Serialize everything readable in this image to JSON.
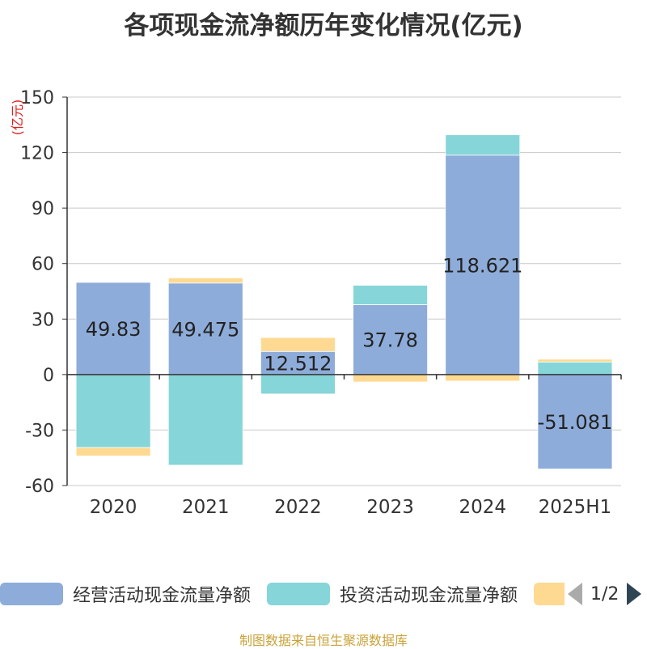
{
  "chart_data": {
    "type": "bar",
    "stacked": true,
    "title": "各项现金流净额历年变化情况(亿元)",
    "ylabel": "(亿元)",
    "categories": [
      "2020",
      "2021",
      "2022",
      "2023",
      "2024",
      "2025H1"
    ],
    "ylim": [
      -60,
      150
    ],
    "yticks": [
      150,
      120,
      90,
      60,
      30,
      0,
      -30,
      -60
    ],
    "grid": true,
    "legend_position": "bottom",
    "series": [
      {
        "name": "经营活动现金流量净额",
        "color": "#8eacd9",
        "values": [
          49.83,
          49.475,
          12.512,
          37.78,
          118.621,
          -51.081
        ],
        "data_labels": [
          "49.83",
          "49.475",
          "12.512",
          "37.78",
          "118.621",
          "-51.081"
        ]
      },
      {
        "name": "投资活动现金流量净额",
        "color": "#86d5d8",
        "values": [
          -39.5,
          -49.0,
          -10.5,
          10.5,
          11.0,
          6.8
        ]
      },
      {
        "name": "",
        "color": "#fed991",
        "values": [
          -4.5,
          2.8,
          7.5,
          -4.0,
          -3.5,
          1.5
        ]
      }
    ]
  },
  "legend": {
    "pager": "1/2"
  },
  "footer": "制图数据来自恒生聚源数据库"
}
